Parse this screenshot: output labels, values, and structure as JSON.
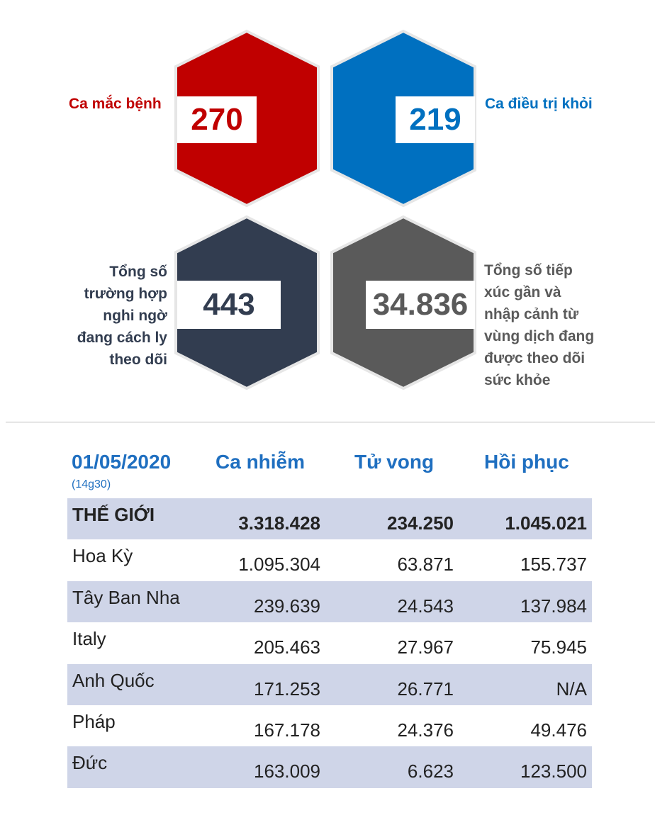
{
  "stats": {
    "cases": {
      "label": "Ca mắc bệnh",
      "value": "270",
      "color": "#c00000"
    },
    "recovered": {
      "label": "Ca điều trị khỏi",
      "value": "219",
      "color": "#0070c0"
    },
    "suspected": {
      "label_lines": [
        "Tổng số",
        "trường hợp",
        "nghi ngờ",
        "đang cách ly",
        "theo dõi"
      ],
      "value": "443",
      "color": "#323d50"
    },
    "monitored": {
      "label_lines": [
        "Tổng số tiếp",
        "xúc gần và",
        "nhập cảnh từ",
        "vùng dịch đang",
        "được theo dõi",
        "sức khỏe"
      ],
      "value": "34.836",
      "color": "#5a5a5a"
    }
  },
  "table": {
    "date": "01/05/2020",
    "time": "(14g30)",
    "headers": [
      "Ca nhiễm",
      "Tử vong",
      "Hồi phục"
    ],
    "rows": [
      [
        "THẾ GIỚI",
        "3.318.428",
        "234.250",
        "1.045.021"
      ],
      [
        "Hoa Kỳ",
        "1.095.304",
        "63.871",
        "155.737"
      ],
      [
        "Tây Ban Nha",
        "239.639",
        "24.543",
        "137.984"
      ],
      [
        "Italy",
        "205.463",
        "27.967",
        "75.945"
      ],
      [
        "Anh Quốc",
        "171.253",
        "26.771",
        "N/A"
      ],
      [
        "Pháp",
        "167.178",
        "24.376",
        "49.476"
      ],
      [
        "Đức",
        "163.009",
        "6.623",
        "123.500"
      ]
    ]
  }
}
